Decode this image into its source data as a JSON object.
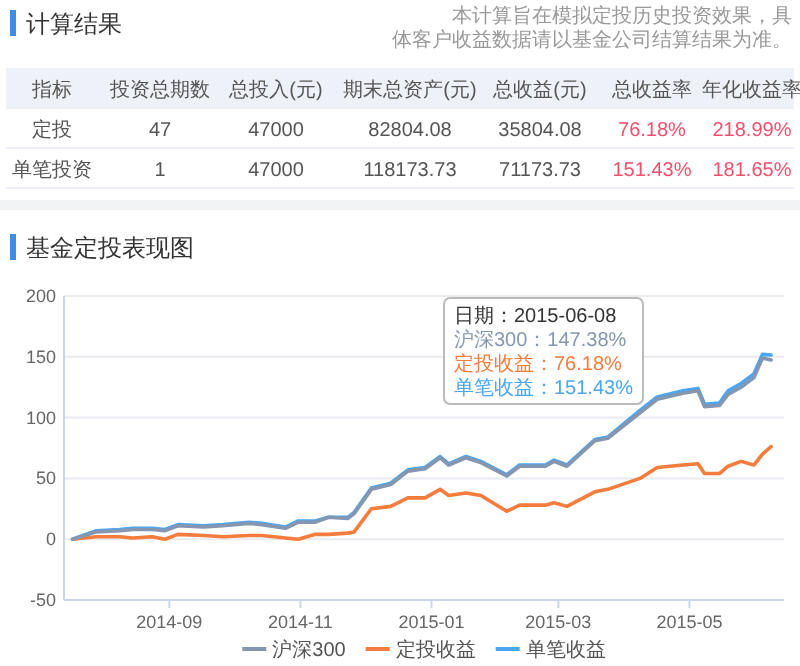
{
  "chart_data": [
    {
      "type": "other",
      "title": "计算结果",
      "subtitle": "本计算旨在模拟定投历史投资效果，具体客户收益数据请以基金公司结算结果为准。",
      "categories": [
        "指标",
        "投资总期数",
        "总投入(元)",
        "期末总资产(元)",
        "总收益(元)",
        "总收益率",
        "年化收益率"
      ],
      "y_categories": [
        "定投",
        "单笔投资"
      ],
      "cell_labels": [
        [
          "47",
          "47000",
          "82804.08",
          "35804.08",
          "76.18%",
          "218.99%"
        ],
        [
          "1",
          "47000",
          "118173.73",
          "71173.73",
          "151.43%",
          "181.65%"
        ]
      ]
    },
    {
      "type": "line",
      "title": "基金定投表现图",
      "x": [
        "2014-07-18",
        "2014-07-29",
        "2014-08-09",
        "2014-08-15",
        "2014-08-24",
        "2014-08-30",
        "2014-09-05",
        "2014-09-17",
        "2014-09-26",
        "2014-10-08",
        "2014-10-14",
        "2014-10-25",
        "2014-10-31",
        "2014-11-08",
        "2014-11-14",
        "2014-11-23",
        "2014-11-26",
        "2014-12-04",
        "2014-12-13",
        "2014-12-21",
        "2014-12-29",
        "2015-01-05",
        "2015-01-09",
        "2015-01-17",
        "2015-01-24",
        "2015-02-05",
        "2015-02-11",
        "2015-02-23",
        "2015-02-27",
        "2015-03-05",
        "2015-03-18",
        "2015-03-24",
        "2015-04-08",
        "2015-04-16",
        "2015-04-28",
        "2015-05-05",
        "2015-05-08",
        "2015-05-15",
        "2015-05-19",
        "2015-05-25",
        "2015-05-31",
        "2015-06-04",
        "2015-06-08"
      ],
      "series": [
        {
          "name": "沪深300",
          "color": "#8596b0",
          "values": [
            0,
            6,
            7,
            8,
            8,
            7,
            11,
            10,
            11,
            13,
            12,
            9,
            14,
            14,
            18,
            17,
            21,
            41,
            45,
            56,
            58,
            67,
            61,
            67,
            63,
            52,
            60,
            60,
            64,
            60,
            81,
            83,
            104,
            115,
            120,
            122,
            109,
            110,
            119,
            125,
            133,
            149,
            147.38
          ]
        },
        {
          "name": "定投收益",
          "color": "#f47c3c",
          "values": [
            0,
            2,
            2,
            1,
            2,
            0,
            4,
            3,
            2,
            3,
            3,
            1,
            0,
            4,
            4,
            5,
            6,
            25,
            27,
            34,
            34,
            41,
            36,
            38,
            36,
            23,
            28,
            28,
            30,
            27,
            39,
            41,
            50,
            59,
            61,
            62,
            54,
            54,
            60,
            64,
            61,
            70,
            76.18
          ]
        },
        {
          "name": "单笔收益",
          "color": "#4aa6f0",
          "values": [
            0,
            7,
            8,
            9,
            9,
            8,
            12,
            11,
            12,
            14,
            13,
            10,
            15,
            15,
            18,
            18,
            22,
            42,
            46,
            57,
            59,
            68,
            62,
            68,
            64,
            53,
            61,
            61,
            65,
            61,
            82,
            84,
            106,
            117,
            122,
            124,
            111,
            112,
            122,
            128,
            136,
            152,
            151.43
          ]
        }
      ],
      "xlim": [
        "2014-07-14",
        "2015-06-14"
      ],
      "xticks": [
        "2014-09",
        "2014-11",
        "2015-01",
        "2015-03",
        "2015-05"
      ],
      "ylim": [
        -50,
        200
      ],
      "yticks": [
        -50,
        0,
        50,
        100,
        150,
        200
      ],
      "grid": "y",
      "legend": "bottom",
      "annotations": [
        "日期：2015-06-08",
        "沪深300：147.38%",
        "定投收益：76.18%",
        "单笔收益：151.43%"
      ]
    }
  ]
}
